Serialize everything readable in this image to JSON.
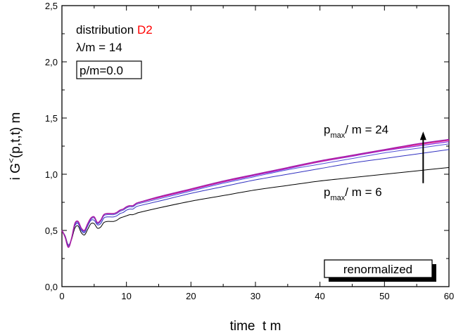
{
  "chart_data": {
    "type": "line",
    "title": "",
    "xlabel": "time  t m",
    "ylabel": "i G",
    "ylabel_sup": "<",
    "ylabel_args": "(p,t,t)  m",
    "xlim": [
      0,
      60
    ],
    "ylim": [
      0,
      2.5
    ],
    "x_ticks": [
      0,
      10,
      20,
      30,
      40,
      50,
      60
    ],
    "x_tick_labels": [
      "0",
      "10",
      "20",
      "30",
      "40",
      "50",
      "60"
    ],
    "y_ticks": [
      0,
      0.5,
      1.0,
      1.5,
      2.0,
      2.5
    ],
    "y_tick_labels": [
      "0,0",
      "0,5",
      "1,0",
      "1,5",
      "2,0",
      "2,5"
    ],
    "grid": false,
    "annotations": {
      "line1_prefix": "distribution ",
      "line1_highlight": "D2",
      "highlight_color": "#ff0000",
      "line2": "λ/m = 14",
      "boxed": "p/m=0.0",
      "upper_p": "p",
      "upper_sub": "max",
      "upper_rest": "/ m = 24",
      "lower_p": "p",
      "lower_sub": "max",
      "lower_rest": "/ m = 6",
      "badge": "renormalized"
    },
    "osc_x": [
      0,
      0.5,
      1.0,
      1.5,
      2.0,
      2.5,
      3.0,
      3.5,
      4.0,
      4.5,
      5.0,
      5.5,
      6.0,
      6.5,
      7.0,
      7.5,
      8.0,
      8.5,
      9.0,
      9.5,
      10.0,
      10.5,
      11.0,
      11.5,
      12.0
    ],
    "series": [
      {
        "color": "#000000",
        "width": 1.0,
        "osc_y": [
          0.5,
          0.45,
          0.37,
          0.42,
          0.52,
          0.54,
          0.48,
          0.46,
          0.51,
          0.56,
          0.56,
          0.52,
          0.53,
          0.57,
          0.58,
          0.58,
          0.58,
          0.59,
          0.61,
          0.62,
          0.63,
          0.64,
          0.64,
          0.65,
          0.66
        ],
        "x": [
          12,
          15,
          20,
          25,
          30,
          35,
          40,
          45,
          50,
          55,
          60
        ],
        "y": [
          0.66,
          0.7,
          0.76,
          0.81,
          0.86,
          0.9,
          0.94,
          0.97,
          1.0,
          1.03,
          1.06
        ]
      },
      {
        "color": "#3030c0",
        "width": 1.0,
        "osc_y": [
          0.5,
          0.45,
          0.37,
          0.43,
          0.54,
          0.56,
          0.5,
          0.48,
          0.54,
          0.59,
          0.59,
          0.55,
          0.56,
          0.61,
          0.62,
          0.62,
          0.62,
          0.63,
          0.65,
          0.66,
          0.68,
          0.69,
          0.69,
          0.71,
          0.72
        ],
        "x": [
          12,
          15,
          20,
          25,
          30,
          35,
          40,
          45,
          50,
          55,
          60
        ],
        "y": [
          0.72,
          0.76,
          0.83,
          0.89,
          0.95,
          1.0,
          1.05,
          1.1,
          1.14,
          1.18,
          1.22
        ]
      },
      {
        "color": "#5050d8",
        "width": 1.0,
        "osc_y": [
          0.5,
          0.44,
          0.36,
          0.43,
          0.55,
          0.57,
          0.51,
          0.49,
          0.55,
          0.6,
          0.61,
          0.56,
          0.58,
          0.63,
          0.64,
          0.64,
          0.64,
          0.65,
          0.67,
          0.68,
          0.7,
          0.71,
          0.71,
          0.73,
          0.74
        ],
        "x": [
          12,
          15,
          20,
          25,
          30,
          35,
          40,
          45,
          50,
          55,
          60
        ],
        "y": [
          0.74,
          0.78,
          0.85,
          0.92,
          0.98,
          1.04,
          1.09,
          1.14,
          1.19,
          1.23,
          1.27
        ]
      },
      {
        "color": "#8a2be2",
        "width": 1.2,
        "osc_y": [
          0.5,
          0.44,
          0.35,
          0.43,
          0.56,
          0.58,
          0.52,
          0.5,
          0.56,
          0.61,
          0.62,
          0.57,
          0.59,
          0.64,
          0.65,
          0.65,
          0.65,
          0.66,
          0.68,
          0.69,
          0.71,
          0.72,
          0.72,
          0.74,
          0.75
        ],
        "x": [
          12,
          15,
          20,
          25,
          30,
          35,
          40,
          45,
          50,
          55,
          60
        ],
        "y": [
          0.75,
          0.79,
          0.86,
          0.93,
          0.99,
          1.05,
          1.11,
          1.16,
          1.21,
          1.25,
          1.29
        ]
      },
      {
        "color": "#e0208a",
        "width": 1.6,
        "osc_y": [
          0.5,
          0.44,
          0.35,
          0.43,
          0.56,
          0.58,
          0.52,
          0.5,
          0.56,
          0.61,
          0.62,
          0.57,
          0.59,
          0.64,
          0.65,
          0.65,
          0.65,
          0.66,
          0.68,
          0.69,
          0.71,
          0.72,
          0.72,
          0.74,
          0.75
        ],
        "x": [
          12,
          15,
          20,
          25,
          30,
          35,
          40,
          45,
          50,
          55,
          60
        ],
        "y": [
          0.755,
          0.795,
          0.865,
          0.935,
          0.997,
          1.057,
          1.115,
          1.167,
          1.217,
          1.262,
          1.303
        ]
      },
      {
        "color": "#9a1fb0",
        "width": 1.2,
        "osc_y": [
          0.5,
          0.44,
          0.35,
          0.43,
          0.56,
          0.58,
          0.52,
          0.5,
          0.56,
          0.61,
          0.62,
          0.57,
          0.59,
          0.64,
          0.65,
          0.65,
          0.65,
          0.66,
          0.68,
          0.69,
          0.71,
          0.72,
          0.72,
          0.74,
          0.75
        ],
        "x": [
          12,
          15,
          20,
          25,
          30,
          35,
          40,
          45,
          50,
          55,
          60
        ],
        "y": [
          0.76,
          0.8,
          0.87,
          0.94,
          1.0,
          1.06,
          1.12,
          1.17,
          1.22,
          1.27,
          1.31
        ]
      }
    ],
    "arrow": {
      "x": 56,
      "y_from": 0.92,
      "y_to": 1.38
    }
  }
}
